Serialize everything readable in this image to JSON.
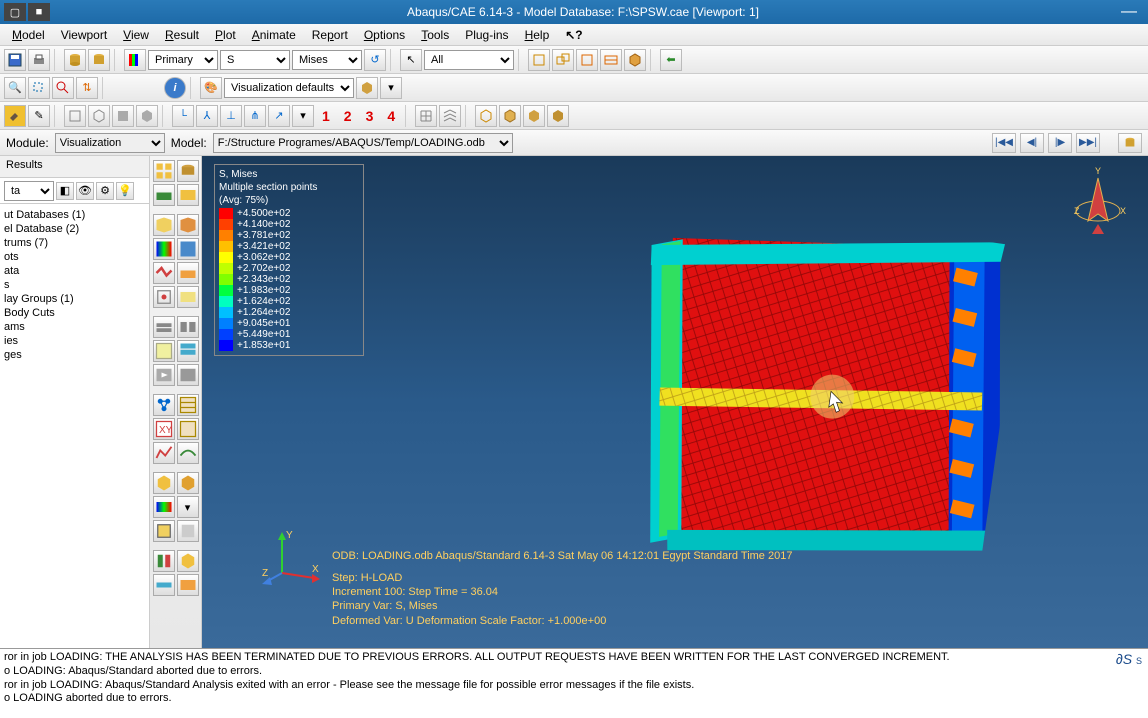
{
  "window": {
    "title": "Abaqus/CAE 6.14-3 - Model Database: F:\\SPSW.cae [Viewport: 1]"
  },
  "menus": [
    "Model",
    "Viewport",
    "View",
    "Result",
    "Plot",
    "Animate",
    "Report",
    "Options",
    "Tools",
    "Plug-ins",
    "Help"
  ],
  "toolbar1": {
    "combo_primary": "Primary",
    "combo_s": "S",
    "combo_mises": "Mises",
    "combo_all": "All"
  },
  "toolbar3": {
    "vis_defaults": "Visualization defaults",
    "nums": [
      "1",
      "2",
      "3",
      "4"
    ]
  },
  "modulebar": {
    "module_label": "Module:",
    "module_value": "Visualization",
    "model_label": "Model:",
    "model_value": "F:/Structure Programes/ABAQUS/Temp/LOADING.odb"
  },
  "leftpanel": {
    "tab": "Results",
    "combo": "ta",
    "tree": [
      "ut Databases (1)",
      "el Database (2)",
      "trums (7)",
      "ots",
      "ata",
      "s",
      "lay Groups (1)",
      "Body Cuts",
      "ams",
      "ies",
      "ges"
    ]
  },
  "legend": {
    "title1": "S, Mises",
    "title2": "Multiple section points",
    "title3": "(Avg: 75%)",
    "items": [
      {
        "c": "#ff0000",
        "v": "+4.500e+02"
      },
      {
        "c": "#ff4000",
        "v": "+4.140e+02"
      },
      {
        "c": "#ff8000",
        "v": "+3.781e+02"
      },
      {
        "c": "#ffc000",
        "v": "+3.421e+02"
      },
      {
        "c": "#ffff00",
        "v": "+3.062e+02"
      },
      {
        "c": "#c0ff00",
        "v": "+2.702e+02"
      },
      {
        "c": "#80ff00",
        "v": "+2.343e+02"
      },
      {
        "c": "#00ff40",
        "v": "+1.983e+02"
      },
      {
        "c": "#00ffc0",
        "v": "+1.624e+02"
      },
      {
        "c": "#00c0ff",
        "v": "+1.264e+02"
      },
      {
        "c": "#0080ff",
        "v": "+9.045e+01"
      },
      {
        "c": "#0040ff",
        "v": "+5.449e+01"
      },
      {
        "c": "#0000ff",
        "v": "+1.853e+01"
      }
    ]
  },
  "annotation": {
    "odb": "ODB: LOADING.odb   Abaqus/Standard 6.14-3   Sat May 06 14:12:01 Egypt Standard Time 2017",
    "step": "Step: H-LOAD",
    "incr": "Increment   100: Step Time =   36.04",
    "primvar": "Primary Var: S, Mises",
    "defvar": "Deformed Var: U   Deformation Scale Factor: +1.000e+00"
  },
  "triad": {
    "x": "X",
    "y": "Y",
    "z": "Z"
  },
  "console": {
    "lines": [
      "ror in job LOADING: THE ANALYSIS HAS BEEN TERMINATED DUE TO PREVIOUS ERRORS. ALL OUTPUT REQUESTS HAVE BEEN WRITTEN FOR THE LAST CONVERGED INCREMENT.",
      "o LOADING: Abaqus/Standard aborted due to errors.",
      "ror in job LOADING: Abaqus/Standard Analysis exited with an error - Please see the  message file for possible error messages if the file exists.",
      "o LOADING aborted due to errors."
    ]
  },
  "colors": {
    "title_bg": "#2a7ab8",
    "viewport_top": "#1a3a5a",
    "viewport_bot": "#3a6a9a",
    "anno": "#ffd060"
  }
}
